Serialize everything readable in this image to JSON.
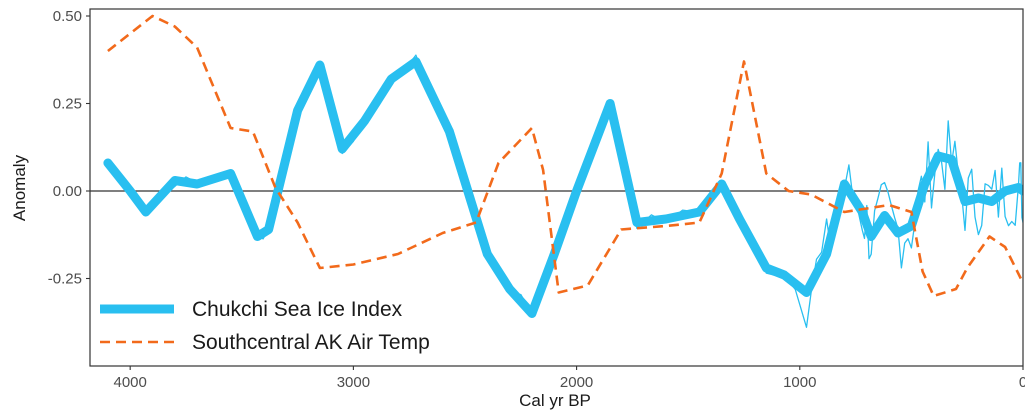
{
  "chart_data": {
    "type": "line",
    "xlabel": "Cal yr BP",
    "ylabel": "Anomaly",
    "xlim": [
      4180,
      0
    ],
    "ylim": [
      -0.5,
      0.52
    ],
    "x_reversed": true,
    "x_ticks": [
      4000,
      3000,
      2000,
      1000,
      0
    ],
    "x_tick_labels": [
      "4000",
      "3000",
      "2000",
      "1000",
      "0"
    ],
    "y_ticks": [
      0.5,
      0.25,
      0.0,
      -0.25
    ],
    "y_tick_labels": [
      "0.50",
      "0.25",
      "0.00",
      "-0.25"
    ],
    "zero_line": true,
    "grid": false,
    "legend_position": "bottom-left",
    "colors": {
      "ice": "#29bff0",
      "air": "#f26a1b",
      "frame": "#333333",
      "zero": "#333333"
    },
    "series": [
      {
        "name": "Chukchi Sea Ice Index",
        "style": "thick-solid",
        "raw_thin": true,
        "x": [
          4100,
          4000,
          3930,
          3800,
          3700,
          3550,
          3430,
          3380,
          3250,
          3150,
          3050,
          2950,
          2830,
          2720,
          2570,
          2400,
          2300,
          2200,
          2100,
          2000,
          1850,
          1730,
          1600,
          1450,
          1350,
          1270,
          1150,
          1070,
          970,
          880,
          800,
          720,
          680,
          620,
          560,
          500,
          440,
          380,
          320,
          260,
          200,
          140,
          80,
          20,
          0
        ],
        "values": [
          0.08,
          0.0,
          -0.06,
          0.03,
          0.02,
          0.05,
          -0.13,
          -0.11,
          0.23,
          0.36,
          0.12,
          0.2,
          0.32,
          0.37,
          0.17,
          -0.18,
          -0.28,
          -0.35,
          -0.18,
          0.0,
          0.25,
          -0.09,
          -0.08,
          -0.06,
          0.02,
          -0.08,
          -0.22,
          -0.24,
          -0.29,
          -0.18,
          0.02,
          -0.06,
          -0.13,
          -0.07,
          -0.12,
          -0.1,
          0.02,
          0.1,
          0.09,
          -0.03,
          -0.02,
          -0.03,
          0.0,
          0.01,
          0.0
        ]
      },
      {
        "name": "Southcentral AK Air Temp",
        "style": "dashed",
        "x": [
          4100,
          4000,
          3900,
          3800,
          3700,
          3550,
          3450,
          3350,
          3250,
          3150,
          3000,
          2800,
          2600,
          2450,
          2350,
          2200,
          2150,
          2080,
          1950,
          1800,
          1600,
          1450,
          1350,
          1250,
          1150,
          1050,
          950,
          800,
          600,
          500,
          450,
          400,
          300,
          250,
          150,
          80,
          10
        ],
        "values": [
          0.4,
          0.45,
          0.5,
          0.47,
          0.41,
          0.18,
          0.17,
          0.01,
          -0.09,
          -0.22,
          -0.21,
          -0.18,
          -0.12,
          -0.09,
          0.08,
          0.18,
          0.06,
          -0.29,
          -0.27,
          -0.11,
          -0.1,
          -0.09,
          0.05,
          0.37,
          0.05,
          0.0,
          -0.01,
          -0.06,
          -0.04,
          -0.06,
          -0.23,
          -0.3,
          -0.28,
          -0.22,
          -0.13,
          -0.16,
          -0.25
        ]
      }
    ]
  }
}
